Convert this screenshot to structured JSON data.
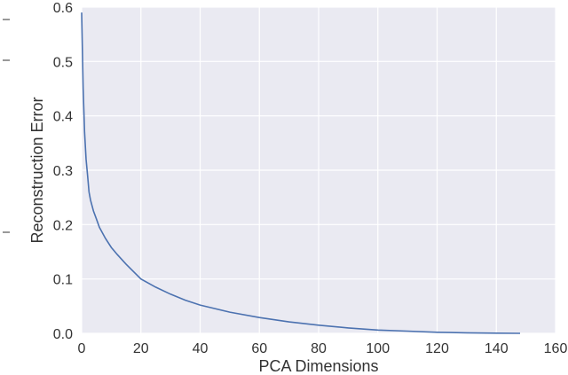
{
  "chart_data": {
    "type": "line",
    "title": "",
    "xlabel": "PCA Dimensions",
    "ylabel": "Reconstruction Error",
    "xlim": [
      0,
      160
    ],
    "ylim": [
      0.0,
      0.6
    ],
    "x_ticks": [
      "0",
      "20",
      "40",
      "60",
      "80",
      "100",
      "120",
      "140",
      "160"
    ],
    "y_ticks": [
      "0.0",
      "0.1",
      "0.2",
      "0.3",
      "0.4",
      "0.5",
      "0.6"
    ],
    "grid": true,
    "legend": "none",
    "colors": {
      "plot_background": "#EAEAF2",
      "grid": "#FFFFFF",
      "line": "#4C72B0",
      "text": "#333333"
    },
    "series": [
      {
        "x": [
          0,
          0.5,
          1,
          1.5,
          2,
          2.5,
          3,
          4,
          5,
          6,
          8,
          10,
          12,
          15,
          20,
          25,
          30,
          35,
          40,
          50,
          60,
          70,
          80,
          90,
          100,
          110,
          120,
          130,
          140,
          148
        ],
        "values": [
          0.59,
          0.45,
          0.37,
          0.32,
          0.29,
          0.26,
          0.245,
          0.225,
          0.21,
          0.195,
          0.175,
          0.158,
          0.145,
          0.127,
          0.1,
          0.085,
          0.072,
          0.061,
          0.052,
          0.039,
          0.029,
          0.021,
          0.015,
          0.01,
          0.006,
          0.004,
          0.002,
          0.001,
          0.0003,
          0.0
        ]
      }
    ]
  }
}
